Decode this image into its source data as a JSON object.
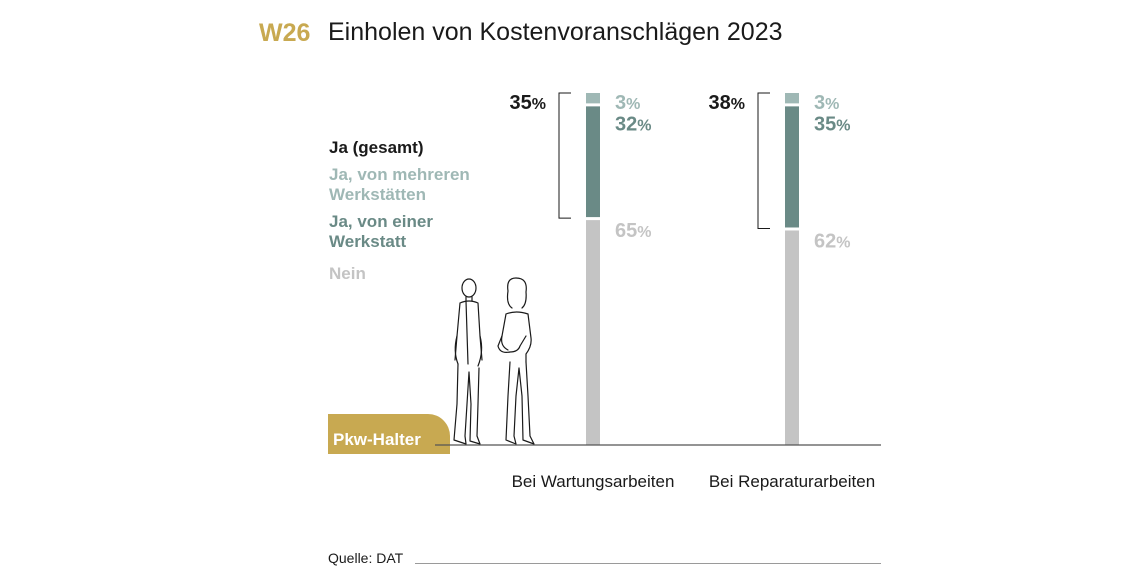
{
  "header": {
    "figure_id": "W26",
    "title": "Einholen von Kostenvoranschlägen 2023"
  },
  "legend": {
    "ja_gesamt": "Ja (gesamt)",
    "mehrere": "Ja, von mehreren Werkstätten",
    "einer": "Ja, von einer Werkstatt",
    "nein": "Nein"
  },
  "badge": {
    "label": "Pkw-Halter"
  },
  "footer": {
    "source": "Quelle: DAT"
  },
  "colors": {
    "gold": "#c8a951",
    "mehrere": "#9fb8b5",
    "einer": "#6a8a86",
    "nein": "#c4c4c4",
    "total": "#1a1a1a"
  },
  "chart_data": {
    "type": "bar",
    "stacked": true,
    "unit": "%",
    "categories": [
      "Bei Wartungsarbeiten",
      "Bei Reparaturarbeiten"
    ],
    "series": [
      {
        "name": "Nein",
        "values": [
          65,
          62
        ]
      },
      {
        "name": "Ja, von einer Werkstatt",
        "values": [
          32,
          35
        ]
      },
      {
        "name": "Ja, von mehreren Werkstätten",
        "values": [
          3,
          3
        ]
      }
    ],
    "totals": {
      "name": "Ja (gesamt)",
      "values": [
        35,
        38
      ]
    },
    "ylim": [
      0,
      100
    ]
  }
}
